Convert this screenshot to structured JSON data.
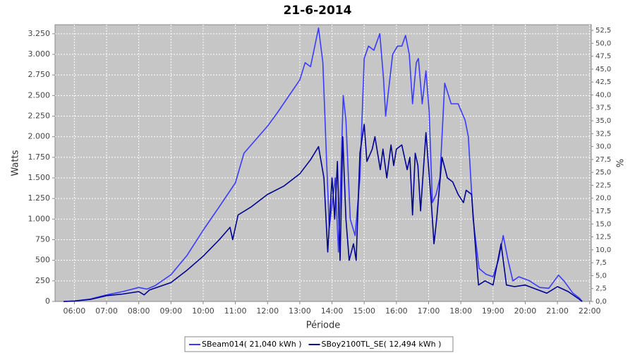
{
  "chart_data": {
    "type": "line",
    "title": "21-6-2014",
    "x_label": "Période",
    "y_label": "Watts",
    "y2_label": "%",
    "xlim": [
      "05:24",
      "22:03"
    ],
    "xticks": [
      "06:00",
      "07:00",
      "08:00",
      "09:00",
      "10:00",
      "11:00",
      "12:00",
      "13:00",
      "14:00",
      "15:00",
      "16:00",
      "17:00",
      "18:00",
      "19:00",
      "20:00",
      "21:00",
      "22:00"
    ],
    "ylim": [
      0,
      3360
    ],
    "yticks": [
      0,
      250,
      500,
      750,
      {
        "value": 1000,
        "label": "1.000"
      },
      {
        "value": 1250,
        "label": "1.250"
      },
      {
        "value": 1500,
        "label": "1.500"
      },
      {
        "value": 1750,
        "label": "1.750"
      },
      {
        "value": 2000,
        "label": "2.000"
      },
      {
        "value": 2250,
        "label": "2.250"
      },
      {
        "value": 2500,
        "label": "2.500"
      },
      {
        "value": 2750,
        "label": "2.750"
      },
      {
        "value": 3000,
        "label": "3.000"
      },
      {
        "value": 3250,
        "label": "3.250"
      }
    ],
    "y2lim": [
      0,
      53.6
    ],
    "y2ticks": [
      {
        "value": 0,
        "label": "0,0"
      },
      {
        "value": 2.5,
        "label": "2,5"
      },
      {
        "value": 5,
        "label": "5,0"
      },
      {
        "value": 7.5,
        "label": "7,5"
      },
      {
        "value": 10,
        "label": "10,0"
      },
      {
        "value": 12.5,
        "label": "12,5"
      },
      {
        "value": 15,
        "label": "15,0"
      },
      {
        "value": 17.5,
        "label": "17,5"
      },
      {
        "value": 20,
        "label": "20,0"
      },
      {
        "value": 22.5,
        "label": "22,5"
      },
      {
        "value": 25,
        "label": "25,0"
      },
      {
        "value": 27.5,
        "label": "27,5"
      },
      {
        "value": 30,
        "label": "30,0"
      },
      {
        "value": 32.5,
        "label": "32,5"
      },
      {
        "value": 35,
        "label": "35,0"
      },
      {
        "value": 37.5,
        "label": "37,5"
      },
      {
        "value": 40,
        "label": "40,0"
      },
      {
        "value": 42.5,
        "label": "42,5"
      },
      {
        "value": 45,
        "label": "45,0"
      },
      {
        "value": 47.5,
        "label": "47,5"
      },
      {
        "value": 50,
        "label": "50,0"
      },
      {
        "value": 52.5,
        "label": "52,5"
      }
    ],
    "grid": true,
    "legend": "bottom",
    "series": [
      {
        "name": "SBeam014( 21,040 kWh )",
        "color": "#3b3bff",
        "x": [
          "05:40",
          "06:00",
          "06:30",
          "07:00",
          "07:30",
          "08:00",
          "08:15",
          "08:30",
          "09:00",
          "09:30",
          "10:00",
          "10:30",
          "11:00",
          "11:16",
          "12:00",
          "12:17",
          "13:00",
          "13:10",
          "13:20",
          "13:35",
          "13:43",
          "13:50",
          "13:55",
          "14:06",
          "14:12",
          "14:21",
          "14:26",
          "14:34",
          "14:43",
          "14:52",
          "15:00",
          "15:08",
          "15:18",
          "15:29",
          "15:36",
          "15:40",
          "15:46",
          "15:53",
          "16:02",
          "16:10",
          "16:17",
          "16:24",
          "16:30",
          "16:37",
          "16:41",
          "16:48",
          "16:55",
          "17:01",
          "17:07",
          "17:14",
          "17:21",
          "17:30",
          "17:42",
          "17:55",
          "18:08",
          "18:14",
          "18:23",
          "18:34",
          "18:47",
          "19:00",
          "19:10",
          "19:19",
          "19:28",
          "19:37",
          "19:48",
          "20:08",
          "20:27",
          "20:44",
          "21:02",
          "21:12",
          "21:29",
          "21:41",
          "21:46"
        ],
        "values": [
          0,
          5,
          30,
          80,
          120,
          170,
          150,
          190,
          325,
          560,
          866,
          1150,
          1440,
          1800,
          2130,
          2280,
          2690,
          2900,
          2850,
          3320,
          2900,
          1700,
          900,
          1500,
          600,
          2500,
          2200,
          1000,
          800,
          1500,
          2950,
          3100,
          3050,
          3250,
          2700,
          2250,
          2600,
          3000,
          3100,
          3100,
          3230,
          3000,
          2400,
          2900,
          2950,
          2400,
          2800,
          2300,
          1200,
          1300,
          1500,
          2650,
          2400,
          2400,
          2200,
          2000,
          1000,
          400,
          330,
          300,
          500,
          800,
          500,
          250,
          300,
          250,
          170,
          160,
          320,
          250,
          100,
          40,
          0
        ]
      },
      {
        "name": "SBoy2100TL_SE( 12,494 kWh )",
        "color": "#000090",
        "x": [
          "05:40",
          "06:00",
          "06:30",
          "07:00",
          "07:30",
          "08:00",
          "08:10",
          "08:20",
          "09:00",
          "09:30",
          "10:00",
          "10:30",
          "10:50",
          "10:55",
          "11:05",
          "11:30",
          "12:00",
          "12:30",
          "12:50",
          "13:00",
          "13:20",
          "13:35",
          "13:45",
          "13:52",
          "14:00",
          "14:05",
          "14:10",
          "14:15",
          "14:20",
          "14:26",
          "14:32",
          "14:40",
          "14:45",
          "14:52",
          "15:00",
          "15:05",
          "15:15",
          "15:20",
          "15:30",
          "15:35",
          "15:42",
          "15:50",
          "15:55",
          "16:00",
          "16:10",
          "16:20",
          "16:25",
          "16:30",
          "16:35",
          "16:40",
          "16:45",
          "16:55",
          "17:05",
          "17:10",
          "17:15",
          "17:25",
          "17:35",
          "17:45",
          "17:55",
          "18:05",
          "18:10",
          "18:20",
          "18:28",
          "18:33",
          "18:45",
          "19:00",
          "19:15",
          "19:25",
          "19:40",
          "20:00",
          "20:20",
          "20:40",
          "21:00",
          "21:20",
          "21:40",
          "21:46"
        ],
        "values": [
          0,
          5,
          25,
          70,
          90,
          120,
          80,
          140,
          230,
          380,
          550,
          750,
          900,
          750,
          1050,
          1150,
          1300,
          1400,
          1500,
          1550,
          1720,
          1880,
          1500,
          600,
          1500,
          1000,
          1700,
          500,
          2000,
          1000,
          500,
          700,
          500,
          1800,
          2150,
          1700,
          1850,
          2000,
          1600,
          1850,
          1500,
          1900,
          1650,
          1850,
          1900,
          1600,
          1750,
          1050,
          1800,
          1650,
          1100,
          2050,
          1200,
          700,
          1000,
          1750,
          1500,
          1450,
          1300,
          1200,
          1350,
          1300,
          600,
          200,
          250,
          200,
          700,
          200,
          180,
          200,
          150,
          100,
          180,
          120,
          30,
          0
        ]
      }
    ]
  }
}
